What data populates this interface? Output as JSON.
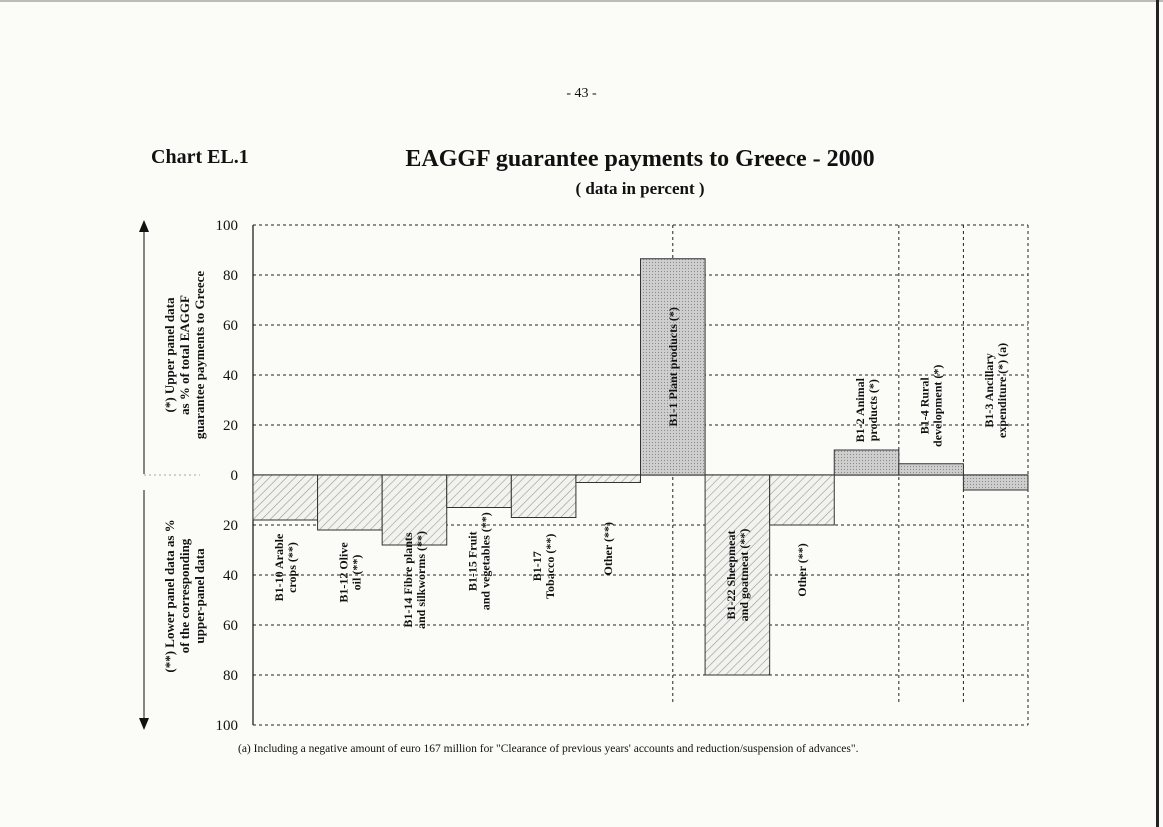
{
  "page_number": "- 43 -",
  "chart_label": "Chart EL.1",
  "footnote": "(a) Including a  negative amount of euro 167 million for \"Clearance of previous years' accounts and  reduction/suspension of advances\".",
  "chart_data": {
    "type": "bar",
    "title": "EAGGF guarantee payments to Greece - 2000",
    "subtitle": "( data in percent )",
    "ylabel_upper": [
      "(*) Upper panel data",
      "as % of total EAGGF",
      "guarantee payments to Greece"
    ],
    "ylabel_lower": [
      "(**) Lower panel data as %",
      "of the corresponding",
      "upper-panel data"
    ],
    "upper_ylim": [
      0,
      100
    ],
    "lower_ylim": [
      0,
      100
    ],
    "ticks_upper": [
      "100",
      "80",
      "60",
      "40",
      "20",
      "0"
    ],
    "ticks_lower": [
      "20",
      "40",
      "60",
      "80",
      "100"
    ],
    "grid": true,
    "categories": [
      {
        "label": [
          "B1-10 Arable",
          "crops (**)"
        ],
        "panel": "lower",
        "value": 18
      },
      {
        "label": [
          "B1-12 Olive",
          "oil (**)"
        ],
        "panel": "lower",
        "value": 22
      },
      {
        "label": [
          "B1-14 Fibre plants",
          "and silkworms (**)"
        ],
        "panel": "lower",
        "value": 28
      },
      {
        "label": [
          "B1-15 Fruit",
          "and vegetables (**)"
        ],
        "panel": "lower",
        "value": 13
      },
      {
        "label": [
          "B1-17",
          "Tobacco (**)"
        ],
        "panel": "lower",
        "value": 17
      },
      {
        "label": [
          "Other (**)"
        ],
        "panel": "lower",
        "value": 3
      },
      {
        "label": [
          "B1-1  Plant  products (*)"
        ],
        "panel": "upper",
        "value": 86.5
      },
      {
        "label": [
          "B1-22 Sheepmeat",
          "and goatmeat (**)"
        ],
        "panel": "lower",
        "value": 80
      },
      {
        "label": [
          "Other (**)"
        ],
        "panel": "lower",
        "value": 20
      },
      {
        "label": [
          "B1-2  Animal",
          "products (*)"
        ],
        "panel": "upper",
        "value": 10
      },
      {
        "label": [
          "B1-4  Rural",
          "development (*)"
        ],
        "panel": "upper",
        "value": 4.5
      },
      {
        "label": [
          "B1-3 Ancillary",
          "expenditure (*) (a)"
        ],
        "panel": "upper",
        "value": -6
      }
    ],
    "colors": {
      "upper_fill": "#c9c9c9",
      "lower_hatch": "#9a9a9a",
      "grid": "#222222"
    }
  }
}
